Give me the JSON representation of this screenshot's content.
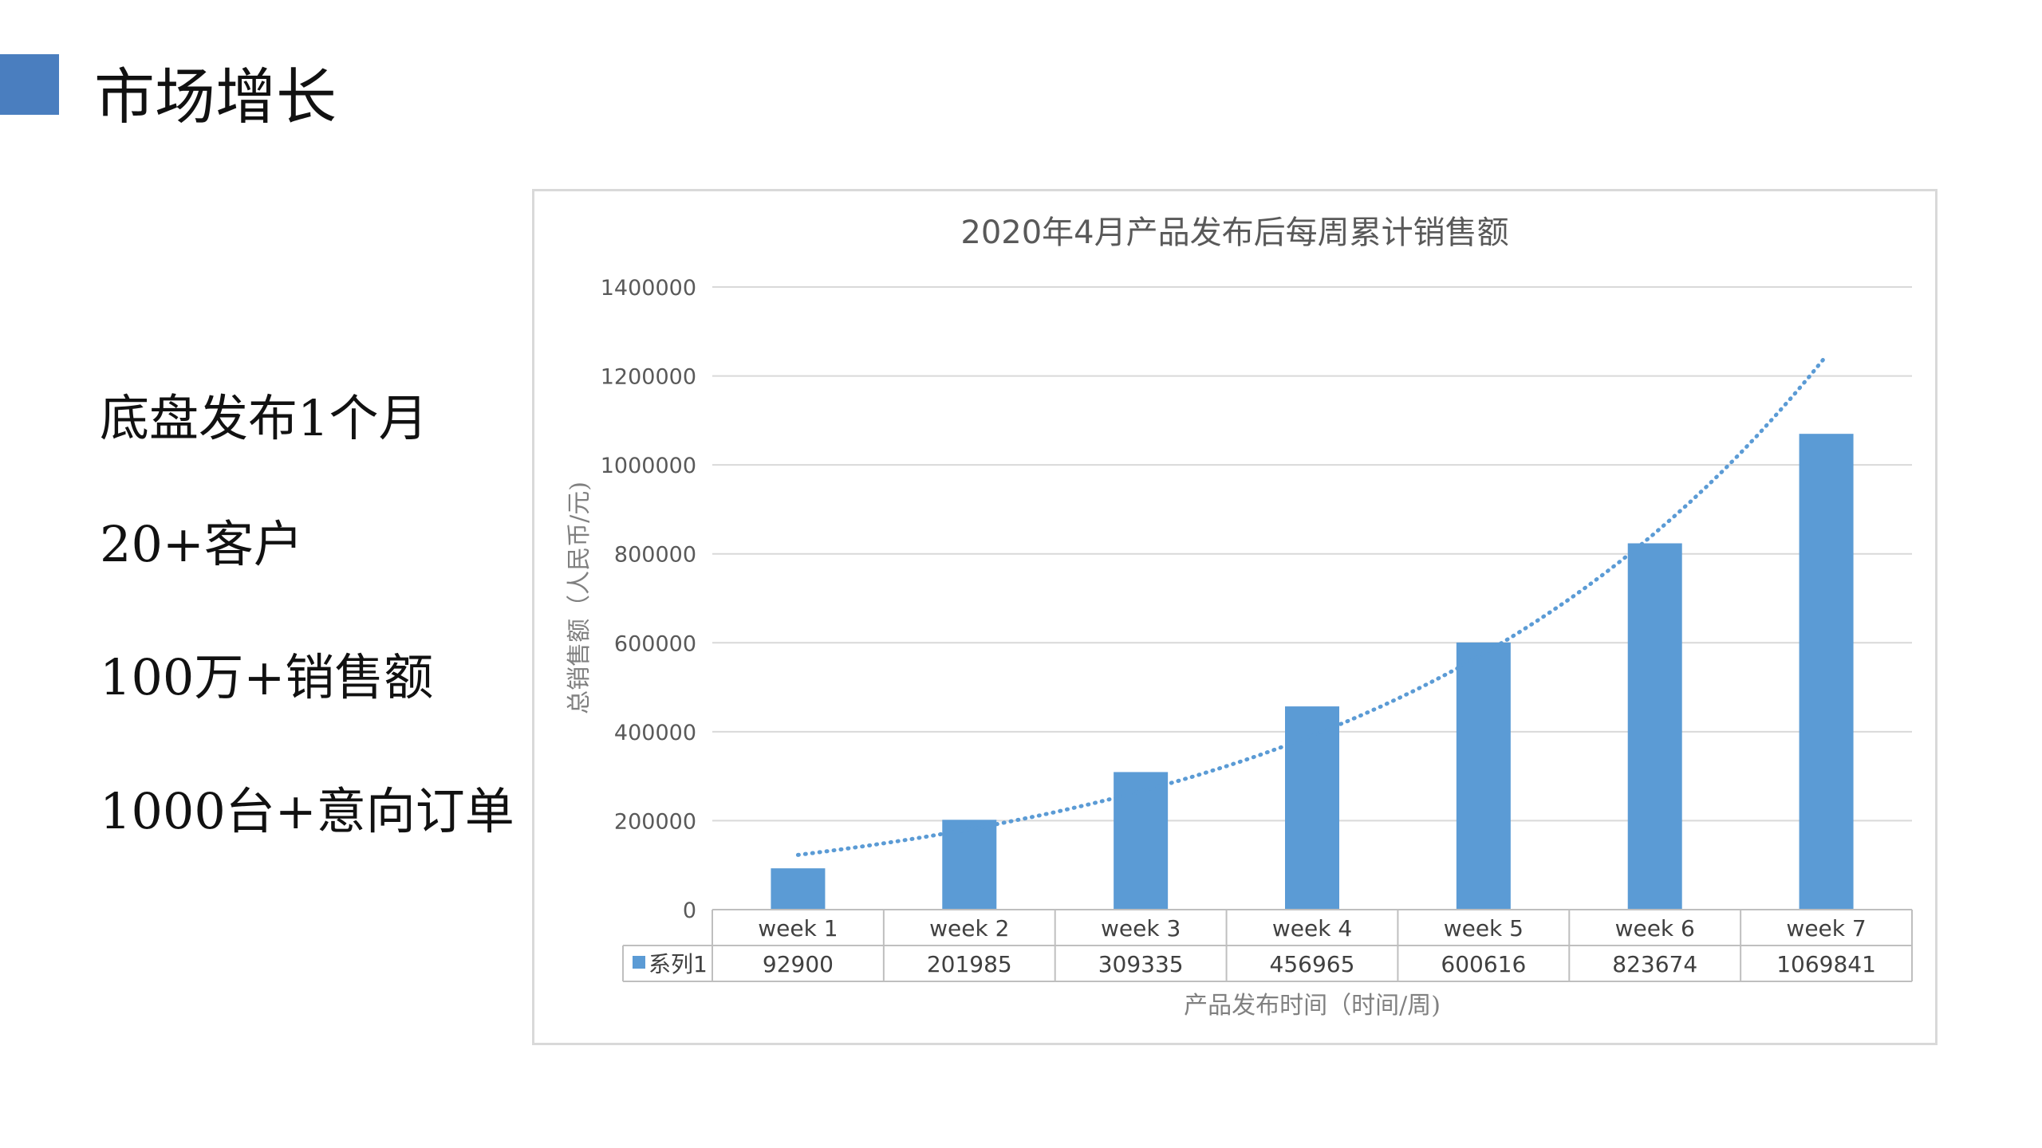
{
  "slide": {
    "title": "市场增长",
    "accent_color": "#4a7ebf",
    "highlights": [
      "底盘发布1个月",
      "20+客户",
      "100万+销售额",
      "1000台+意向订单"
    ]
  },
  "chart_data": {
    "type": "bar",
    "title": "2020年4月产品发布后每周累计销售额",
    "xlabel": "产品发布时间（时间/周)",
    "ylabel": "总销售额（人民币/元)",
    "categories": [
      "week 1",
      "week 2",
      "week 3",
      "week 4",
      "week 5",
      "week 6",
      "week 7"
    ],
    "series": [
      {
        "name": "系列1",
        "values": [
          92900,
          201985,
          309335,
          456965,
          600616,
          823674,
          1069841
        ],
        "color": "#5b9bd5"
      }
    ],
    "trendline": {
      "type": "exponential",
      "style": "dotted",
      "color": "#5b9bd5"
    },
    "ylim": [
      0,
      1400000
    ],
    "yticks": [
      0,
      200000,
      400000,
      600000,
      800000,
      1000000,
      1200000,
      1400000
    ],
    "grid": true,
    "legend": "data-table",
    "data_table": true
  }
}
